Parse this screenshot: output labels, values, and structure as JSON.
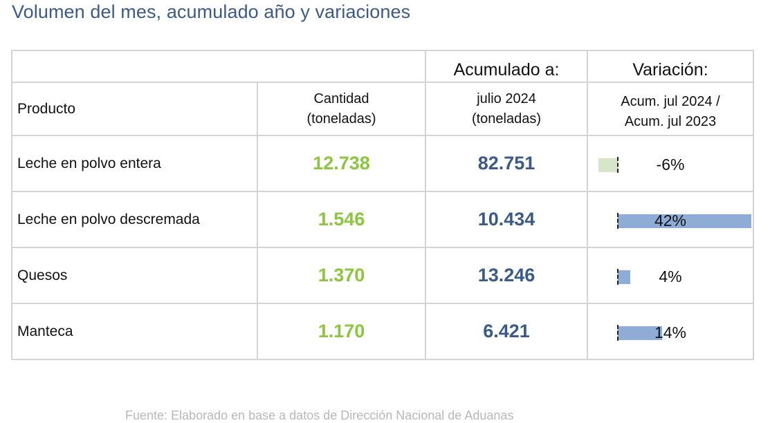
{
  "title": "Volumen del mes, acumulado año y variaciones",
  "headers": {
    "product": "Producto",
    "quantity_line1": "Cantidad",
    "quantity_line2": "(toneladas)",
    "accum_title": "Acumulado a:",
    "accum_line1": "julio 2024",
    "accum_line2": "(toneladas)",
    "variation_title": "Variación:",
    "variation_line1": "Acum. jul 2024 /",
    "variation_line2": "Acum. jul 2023"
  },
  "rows": [
    {
      "product": "Leche en polvo entera",
      "quantity": "12.738",
      "accumulated": "82.751",
      "variation_label": "-6%",
      "variation_value": -6
    },
    {
      "product": "Leche en polvo descremada",
      "quantity": "1.546",
      "accumulated": "10.434",
      "variation_label": "42%",
      "variation_value": 42
    },
    {
      "product": "Quesos",
      "quantity": "1.370",
      "accumulated": "13.246",
      "variation_label": "4%",
      "variation_value": 4
    },
    {
      "product": "Manteca",
      "quantity": "1.170",
      "accumulated": "6.421",
      "variation_label": "14%",
      "variation_value": 14
    }
  ],
  "colors": {
    "quantity": "#8cc63f",
    "accumulated": "#3a5a8a",
    "bar_positive": "#8facd6",
    "bar_negative": "#d6e6c6"
  },
  "source": "Fuente: Elaborado en base a datos de Dirección Nacional de Aduanas"
}
